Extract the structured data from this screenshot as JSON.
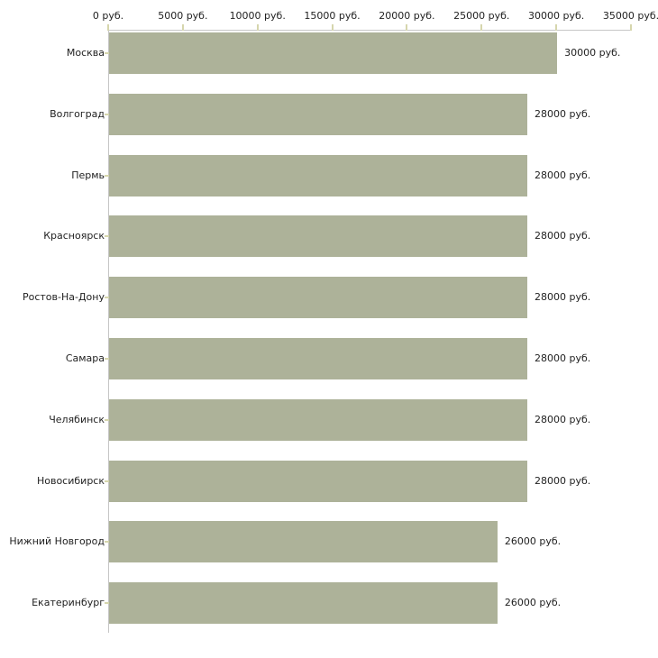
{
  "chart_data": {
    "type": "bar",
    "orientation": "horizontal",
    "title": "",
    "xlabel": "",
    "ylabel": "",
    "unit": "руб.",
    "categories": [
      "Москва",
      "Волгоград",
      "Пермь",
      "Красноярск",
      "Ростов-На-Дону",
      "Самара",
      "Челябинск",
      "Новосибирск",
      "Нижний Новгород",
      "Екатеринбург"
    ],
    "values": [
      30000,
      28000,
      28000,
      28000,
      28000,
      28000,
      28000,
      28000,
      26000,
      26000
    ],
    "bar_value_labels": [
      "30000 руб.",
      "28000 руб.",
      "28000 руб.",
      "28000 руб.",
      "28000 руб.",
      "28000 руб.",
      "28000 руб.",
      "28000 руб.",
      "26000 руб.",
      "26000 руб."
    ],
    "x_axis": {
      "position": "top",
      "ticks": [
        0,
        5000,
        10000,
        15000,
        20000,
        25000,
        30000,
        35000
      ],
      "tick_labels": [
        "0 руб.",
        "5000 руб.",
        "10000 руб.",
        "15000 руб.",
        "20000 руб.",
        "25000 руб.",
        "30000 руб.",
        "35000 руб."
      ]
    },
    "xlim": [
      0,
      35000
    ],
    "grid": false,
    "legend": false,
    "colors": {
      "bar": "#adb299",
      "axis_line": "#c6c6c6",
      "tick_mark": "#d6d6ad",
      "text": "#222222",
      "background": "#ffffff"
    }
  }
}
